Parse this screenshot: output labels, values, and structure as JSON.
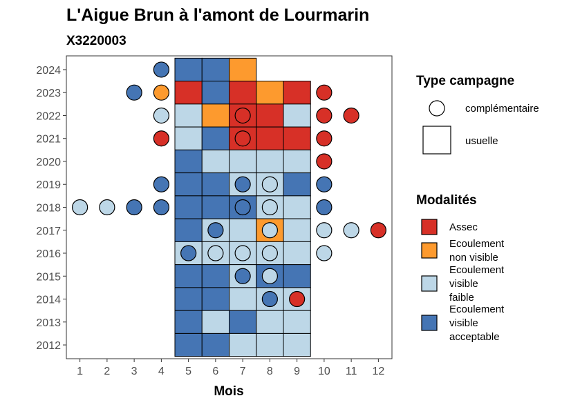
{
  "chart_data": {
    "type": "heatmap",
    "title": "L'Aigue Brun à l'amont de Lourmarin",
    "subtitle": "X3220003",
    "xlabel": "Mois",
    "ylabel": "",
    "x_ticks": [
      "1",
      "2",
      "3",
      "4",
      "5",
      "6",
      "7",
      "8",
      "9",
      "10",
      "11",
      "12"
    ],
    "y_ticks": [
      "2012",
      "2013",
      "2014",
      "2015",
      "2016",
      "2017",
      "2018",
      "2019",
      "2020",
      "2021",
      "2022",
      "2023",
      "2024"
    ],
    "xlim": [
      0.5,
      12.5
    ],
    "ylim": [
      2011.4,
      2024.6
    ],
    "grid": false,
    "legend_position": "right",
    "legend_campagne": {
      "title": "Type campagne",
      "items": [
        {
          "key": "complementaire",
          "label": "complémentaire",
          "shape": "circle"
        },
        {
          "key": "usuelle",
          "label": "usuelle",
          "shape": "square"
        }
      ]
    },
    "legend_modalites": {
      "title": "Modalités",
      "items": [
        {
          "key": "A",
          "lines": [
            "Assec"
          ],
          "color": "#d73027"
        },
        {
          "key": "N",
          "lines": [
            "Ecoulement",
            "non visible"
          ],
          "color": "#fd9a2e"
        },
        {
          "key": "F",
          "lines": [
            "Ecoulement",
            "visible",
            "faible"
          ],
          "color": "#bdd7e7"
        },
        {
          "key": "V",
          "lines": [
            "Ecoulement",
            "visible",
            "acceptable"
          ],
          "color": "#4575b4"
        }
      ]
    },
    "usuelle": [
      {
        "year": 2024,
        "cells": {
          "5": "V",
          "6": "V",
          "7": "N"
        }
      },
      {
        "year": 2023,
        "cells": {
          "5": "A",
          "6": "V",
          "7": "A",
          "8": "N",
          "9": "A"
        }
      },
      {
        "year": 2022,
        "cells": {
          "5": "F",
          "6": "N",
          "7": "A",
          "8": "A",
          "9": "F"
        }
      },
      {
        "year": 2021,
        "cells": {
          "5": "F",
          "6": "V",
          "7": "A",
          "8": "A",
          "9": "A"
        }
      },
      {
        "year": 2020,
        "cells": {
          "5": "V",
          "6": "F",
          "7": "F",
          "8": "F",
          "9": "F"
        }
      },
      {
        "year": 2019,
        "cells": {
          "5": "V",
          "6": "V",
          "7": "F",
          "8": "F",
          "9": "V"
        }
      },
      {
        "year": 2018,
        "cells": {
          "5": "V",
          "6": "V",
          "7": "V",
          "8": "F",
          "9": "F"
        }
      },
      {
        "year": 2017,
        "cells": {
          "5": "V",
          "6": "F",
          "7": "F",
          "8": "N",
          "9": "F"
        }
      },
      {
        "year": 2016,
        "cells": {
          "5": "F",
          "6": "F",
          "7": "F",
          "8": "F",
          "9": "F"
        }
      },
      {
        "year": 2015,
        "cells": {
          "5": "V",
          "6": "V",
          "7": "F",
          "8": "V",
          "9": "V"
        }
      },
      {
        "year": 2014,
        "cells": {
          "5": "V",
          "6": "V",
          "7": "F",
          "8": "F",
          "9": "F"
        }
      },
      {
        "year": 2013,
        "cells": {
          "5": "V",
          "6": "F",
          "7": "V",
          "8": "F",
          "9": "F"
        }
      },
      {
        "year": 2012,
        "cells": {
          "5": "V",
          "6": "V",
          "7": "F",
          "8": "F",
          "9": "F"
        }
      }
    ],
    "complementaire": [
      {
        "year": 2024,
        "month": 4,
        "value": "V"
      },
      {
        "year": 2023,
        "month": 3,
        "value": "V"
      },
      {
        "year": 2023,
        "month": 4,
        "value": "N"
      },
      {
        "year": 2023,
        "month": 10,
        "value": "A"
      },
      {
        "year": 2022,
        "month": 4,
        "value": "F"
      },
      {
        "year": 2022,
        "month": 7,
        "value": "A"
      },
      {
        "year": 2022,
        "month": 10,
        "value": "A"
      },
      {
        "year": 2022,
        "month": 11,
        "value": "A"
      },
      {
        "year": 2021,
        "month": 4,
        "value": "A"
      },
      {
        "year": 2021,
        "month": 7,
        "value": "A"
      },
      {
        "year": 2021,
        "month": 10,
        "value": "A"
      },
      {
        "year": 2020,
        "month": 10,
        "value": "A"
      },
      {
        "year": 2019,
        "month": 4,
        "value": "V"
      },
      {
        "year": 2019,
        "month": 7,
        "value": "V"
      },
      {
        "year": 2019,
        "month": 8,
        "value": "F"
      },
      {
        "year": 2019,
        "month": 10,
        "value": "V"
      },
      {
        "year": 2018,
        "month": 1,
        "value": "F"
      },
      {
        "year": 2018,
        "month": 2,
        "value": "F"
      },
      {
        "year": 2018,
        "month": 3,
        "value": "V"
      },
      {
        "year": 2018,
        "month": 4,
        "value": "V"
      },
      {
        "year": 2018,
        "month": 7,
        "value": "V"
      },
      {
        "year": 2018,
        "month": 8,
        "value": "F"
      },
      {
        "year": 2018,
        "month": 10,
        "value": "V"
      },
      {
        "year": 2017,
        "month": 6,
        "value": "V"
      },
      {
        "year": 2017,
        "month": 8,
        "value": "F"
      },
      {
        "year": 2017,
        "month": 10,
        "value": "F"
      },
      {
        "year": 2017,
        "month": 11,
        "value": "F"
      },
      {
        "year": 2017,
        "month": 12,
        "value": "A"
      },
      {
        "year": 2016,
        "month": 5,
        "value": "V"
      },
      {
        "year": 2016,
        "month": 6,
        "value": "F"
      },
      {
        "year": 2016,
        "month": 7,
        "value": "F"
      },
      {
        "year": 2016,
        "month": 8,
        "value": "F"
      },
      {
        "year": 2016,
        "month": 10,
        "value": "F"
      },
      {
        "year": 2015,
        "month": 7,
        "value": "V"
      },
      {
        "year": 2015,
        "month": 8,
        "value": "F"
      },
      {
        "year": 2014,
        "month": 8,
        "value": "V"
      },
      {
        "year": 2014,
        "month": 9,
        "value": "A"
      }
    ]
  }
}
